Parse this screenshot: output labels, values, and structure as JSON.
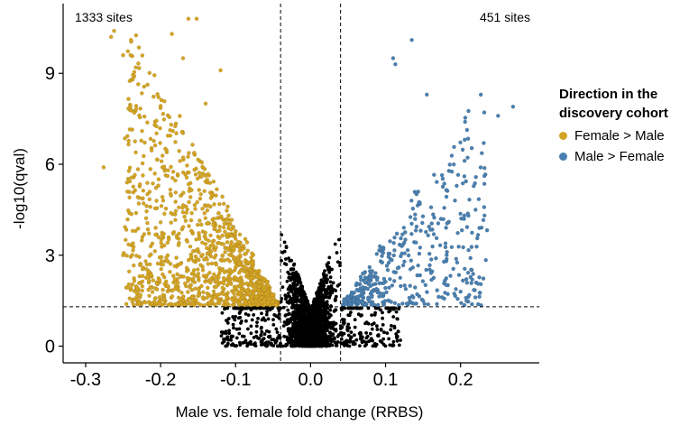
{
  "chart_data": {
    "type": "scatter",
    "xlabel": "Male vs. female fold change (RRBS)",
    "ylabel": "-log10(qval)",
    "xlim": [
      -0.33,
      0.305
    ],
    "ylim": [
      -0.55,
      11.3
    ],
    "x_ticks": [
      "-0.3",
      "-0.2",
      "-0.1",
      "0.0",
      "0.1",
      "0.2"
    ],
    "x_tick_values": [
      -0.3,
      -0.2,
      -0.1,
      0.0,
      0.1,
      0.2
    ],
    "y_ticks": [
      "0",
      "3",
      "6",
      "9"
    ],
    "y_tick_values": [
      0,
      3,
      6,
      9
    ],
    "thresholds": {
      "x": [
        -0.04,
        0.04
      ],
      "y": 1.3
    },
    "annotations": {
      "left": "1333 sites",
      "right": "451 sites"
    },
    "grid": false,
    "legend_position": "right",
    "legend_title": "Direction in the\ndiscovery cohort",
    "series": [
      {
        "name": "Female > Male",
        "color": "#D4A524",
        "count": 1333
      },
      {
        "name": "Male > Female",
        "color": "#4A80B0",
        "count": 451
      },
      {
        "color": "#000000"
      }
    ],
    "highlight_points": [
      {
        "series": 0,
        "x": -0.266,
        "y": 10.2
      },
      {
        "series": 0,
        "x": -0.262,
        "y": 10.4
      },
      {
        "series": 0,
        "x": -0.25,
        "y": 9.6
      },
      {
        "series": 0,
        "x": -0.24,
        "y": 9.6
      },
      {
        "series": 0,
        "x": -0.237,
        "y": 8.8
      },
      {
        "series": 0,
        "x": -0.276,
        "y": 5.9
      },
      {
        "series": 0,
        "x": -0.25,
        "y": 3.0
      },
      {
        "series": 0,
        "x": -0.22,
        "y": 2.8
      },
      {
        "series": 0,
        "x": -0.163,
        "y": 10.8
      },
      {
        "series": 0,
        "x": -0.152,
        "y": 10.8
      },
      {
        "series": 0,
        "x": -0.185,
        "y": 10.3
      },
      {
        "series": 0,
        "x": -0.17,
        "y": 9.5
      },
      {
        "series": 0,
        "x": -0.14,
        "y": 8.0
      },
      {
        "series": 0,
        "x": -0.12,
        "y": 9.1
      },
      {
        "series": 1,
        "x": 0.135,
        "y": 10.1
      },
      {
        "series": 1,
        "x": 0.11,
        "y": 9.5
      },
      {
        "series": 1,
        "x": 0.113,
        "y": 9.3
      },
      {
        "series": 1,
        "x": 0.155,
        "y": 8.3
      },
      {
        "series": 1,
        "x": 0.25,
        "y": 7.6
      },
      {
        "series": 1,
        "x": 0.27,
        "y": 7.9
      },
      {
        "series": 1,
        "x": 0.205,
        "y": 5.6
      },
      {
        "series": 1,
        "x": 0.22,
        "y": 4.5
      },
      {
        "series": 1,
        "x": 0.2,
        "y": 1.8
      }
    ]
  }
}
